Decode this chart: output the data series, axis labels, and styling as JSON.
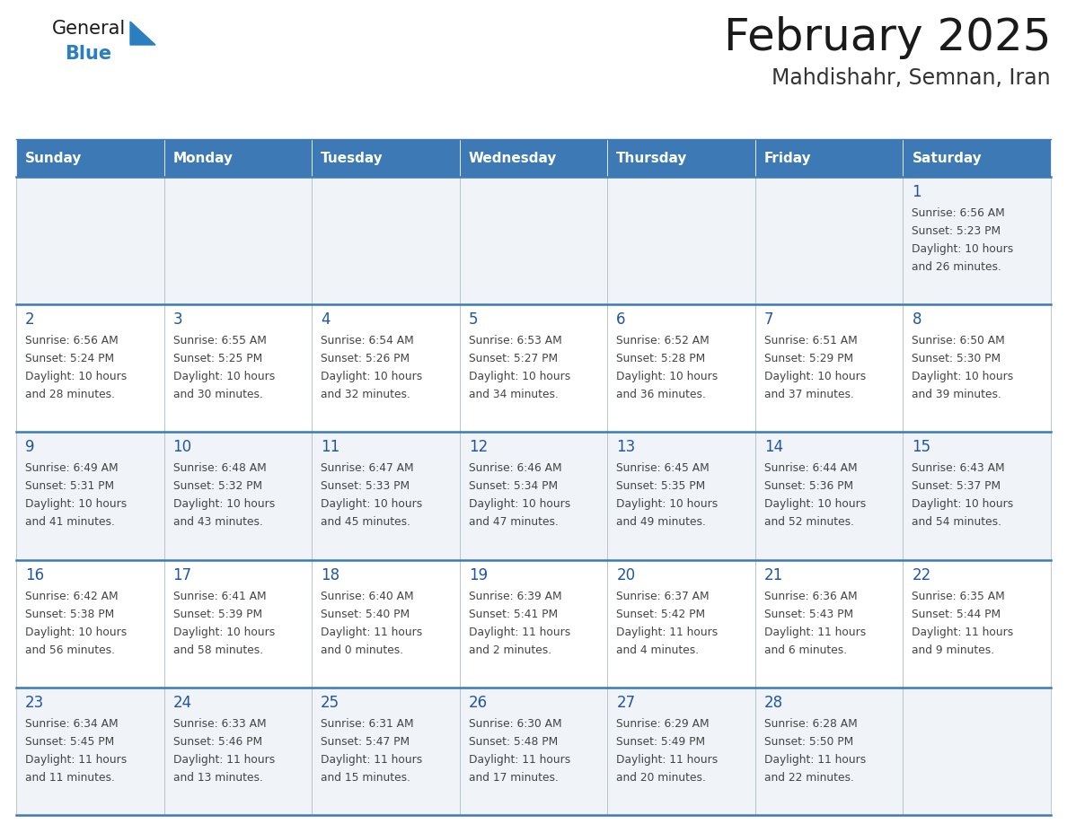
{
  "title": "February 2025",
  "subtitle": "Mahdishahr, Semnan, Iran",
  "days_of_week": [
    "Sunday",
    "Monday",
    "Tuesday",
    "Wednesday",
    "Thursday",
    "Friday",
    "Saturday"
  ],
  "header_bg": "#3d7ab5",
  "header_text": "#ffffff",
  "row_bg_even": "#f0f4f8",
  "row_bg_odd": "#ffffff",
  "cell_border_color": "#b0bec5",
  "row_sep_color": "#3d7ab5",
  "day_number_color": "#2255a0",
  "text_color": "#444444",
  "calendar_data": [
    [
      null,
      null,
      null,
      null,
      null,
      null,
      {
        "day": 1,
        "sunrise": "6:56 AM",
        "sunset": "5:23 PM",
        "daylight": "10 hours",
        "daylight2": "and 26 minutes."
      }
    ],
    [
      {
        "day": 2,
        "sunrise": "6:56 AM",
        "sunset": "5:24 PM",
        "daylight": "10 hours",
        "daylight2": "and 28 minutes."
      },
      {
        "day": 3,
        "sunrise": "6:55 AM",
        "sunset": "5:25 PM",
        "daylight": "10 hours",
        "daylight2": "and 30 minutes."
      },
      {
        "day": 4,
        "sunrise": "6:54 AM",
        "sunset": "5:26 PM",
        "daylight": "10 hours",
        "daylight2": "and 32 minutes."
      },
      {
        "day": 5,
        "sunrise": "6:53 AM",
        "sunset": "5:27 PM",
        "daylight": "10 hours",
        "daylight2": "and 34 minutes."
      },
      {
        "day": 6,
        "sunrise": "6:52 AM",
        "sunset": "5:28 PM",
        "daylight": "10 hours",
        "daylight2": "and 36 minutes."
      },
      {
        "day": 7,
        "sunrise": "6:51 AM",
        "sunset": "5:29 PM",
        "daylight": "10 hours",
        "daylight2": "and 37 minutes."
      },
      {
        "day": 8,
        "sunrise": "6:50 AM",
        "sunset": "5:30 PM",
        "daylight": "10 hours",
        "daylight2": "and 39 minutes."
      }
    ],
    [
      {
        "day": 9,
        "sunrise": "6:49 AM",
        "sunset": "5:31 PM",
        "daylight": "10 hours",
        "daylight2": "and 41 minutes."
      },
      {
        "day": 10,
        "sunrise": "6:48 AM",
        "sunset": "5:32 PM",
        "daylight": "10 hours",
        "daylight2": "and 43 minutes."
      },
      {
        "day": 11,
        "sunrise": "6:47 AM",
        "sunset": "5:33 PM",
        "daylight": "10 hours",
        "daylight2": "and 45 minutes."
      },
      {
        "day": 12,
        "sunrise": "6:46 AM",
        "sunset": "5:34 PM",
        "daylight": "10 hours",
        "daylight2": "and 47 minutes."
      },
      {
        "day": 13,
        "sunrise": "6:45 AM",
        "sunset": "5:35 PM",
        "daylight": "10 hours",
        "daylight2": "and 49 minutes."
      },
      {
        "day": 14,
        "sunrise": "6:44 AM",
        "sunset": "5:36 PM",
        "daylight": "10 hours",
        "daylight2": "and 52 minutes."
      },
      {
        "day": 15,
        "sunrise": "6:43 AM",
        "sunset": "5:37 PM",
        "daylight": "10 hours",
        "daylight2": "and 54 minutes."
      }
    ],
    [
      {
        "day": 16,
        "sunrise": "6:42 AM",
        "sunset": "5:38 PM",
        "daylight": "10 hours",
        "daylight2": "and 56 minutes."
      },
      {
        "day": 17,
        "sunrise": "6:41 AM",
        "sunset": "5:39 PM",
        "daylight": "10 hours",
        "daylight2": "and 58 minutes."
      },
      {
        "day": 18,
        "sunrise": "6:40 AM",
        "sunset": "5:40 PM",
        "daylight": "11 hours",
        "daylight2": "and 0 minutes."
      },
      {
        "day": 19,
        "sunrise": "6:39 AM",
        "sunset": "5:41 PM",
        "daylight": "11 hours",
        "daylight2": "and 2 minutes."
      },
      {
        "day": 20,
        "sunrise": "6:37 AM",
        "sunset": "5:42 PM",
        "daylight": "11 hours",
        "daylight2": "and 4 minutes."
      },
      {
        "day": 21,
        "sunrise": "6:36 AM",
        "sunset": "5:43 PM",
        "daylight": "11 hours",
        "daylight2": "and 6 minutes."
      },
      {
        "day": 22,
        "sunrise": "6:35 AM",
        "sunset": "5:44 PM",
        "daylight": "11 hours",
        "daylight2": "and 9 minutes."
      }
    ],
    [
      {
        "day": 23,
        "sunrise": "6:34 AM",
        "sunset": "5:45 PM",
        "daylight": "11 hours",
        "daylight2": "and 11 minutes."
      },
      {
        "day": 24,
        "sunrise": "6:33 AM",
        "sunset": "5:46 PM",
        "daylight": "11 hours",
        "daylight2": "and 13 minutes."
      },
      {
        "day": 25,
        "sunrise": "6:31 AM",
        "sunset": "5:47 PM",
        "daylight": "11 hours",
        "daylight2": "and 15 minutes."
      },
      {
        "day": 26,
        "sunrise": "6:30 AM",
        "sunset": "5:48 PM",
        "daylight": "11 hours",
        "daylight2": "and 17 minutes."
      },
      {
        "day": 27,
        "sunrise": "6:29 AM",
        "sunset": "5:49 PM",
        "daylight": "11 hours",
        "daylight2": "and 20 minutes."
      },
      {
        "day": 28,
        "sunrise": "6:28 AM",
        "sunset": "5:50 PM",
        "daylight": "11 hours",
        "daylight2": "and 22 minutes."
      },
      null
    ]
  ]
}
